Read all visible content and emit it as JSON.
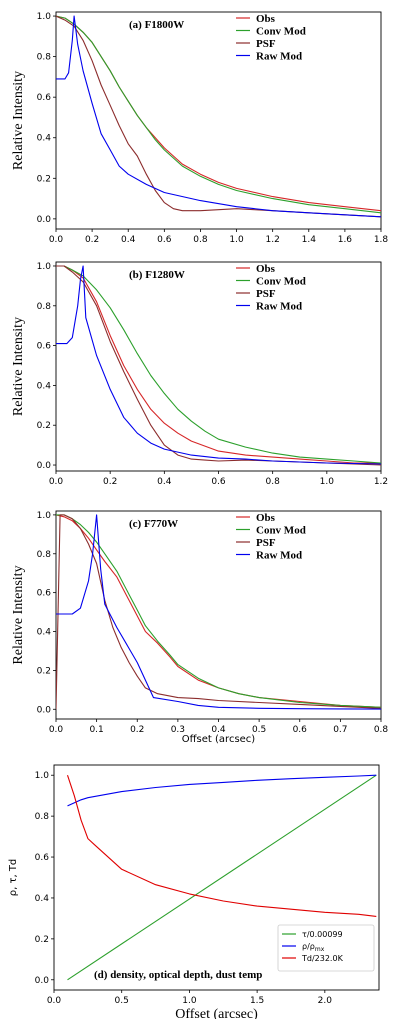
{
  "figure": "page",
  "chart_data": [
    {
      "type": "line",
      "title": "(a) F1800W",
      "xlabel": "",
      "ylabel": "Relative Intensity",
      "xlim": [
        0,
        1.8
      ],
      "ylim": [
        -0.05,
        1.02
      ],
      "xticks": [
        "0.0",
        "0.2",
        "0.4",
        "0.6",
        "0.8",
        "1.0",
        "1.2",
        "1.4",
        "1.6",
        "1.8"
      ],
      "yticks": [
        "0.0",
        "0.2",
        "0.4",
        "0.6",
        "0.8",
        "1.0"
      ],
      "legend": "top-right",
      "series": [
        {
          "name": "Obs",
          "color": "#d62728",
          "x": [
            0,
            0.05,
            0.1,
            0.15,
            0.2,
            0.25,
            0.3,
            0.35,
            0.4,
            0.45,
            0.5,
            0.55,
            0.6,
            0.7,
            0.8,
            0.9,
            1.0,
            1.2,
            1.4,
            1.6,
            1.8
          ],
          "y": [
            1.0,
            0.99,
            0.96,
            0.92,
            0.87,
            0.8,
            0.73,
            0.65,
            0.58,
            0.51,
            0.45,
            0.4,
            0.35,
            0.27,
            0.22,
            0.18,
            0.15,
            0.11,
            0.08,
            0.06,
            0.04
          ]
        },
        {
          "name": "Conv Mod",
          "color": "#2ca02c",
          "x": [
            0,
            0.05,
            0.1,
            0.15,
            0.2,
            0.25,
            0.3,
            0.35,
            0.4,
            0.45,
            0.5,
            0.55,
            0.6,
            0.7,
            0.8,
            0.9,
            1.0,
            1.2,
            1.4,
            1.6,
            1.8
          ],
          "y": [
            1.0,
            0.99,
            0.96,
            0.92,
            0.87,
            0.8,
            0.73,
            0.65,
            0.58,
            0.51,
            0.45,
            0.39,
            0.34,
            0.26,
            0.21,
            0.17,
            0.14,
            0.1,
            0.07,
            0.05,
            0.03
          ]
        },
        {
          "name": "PSF",
          "color": "#8c2d2d",
          "x": [
            0,
            0.05,
            0.1,
            0.15,
            0.2,
            0.25,
            0.3,
            0.35,
            0.4,
            0.45,
            0.5,
            0.55,
            0.6,
            0.65,
            0.7,
            0.8,
            0.9,
            1.0,
            1.1,
            1.2,
            1.4,
            1.6,
            1.8
          ],
          "y": [
            1.0,
            0.98,
            0.95,
            0.88,
            0.78,
            0.66,
            0.56,
            0.46,
            0.37,
            0.31,
            0.22,
            0.14,
            0.08,
            0.05,
            0.04,
            0.04,
            0.045,
            0.05,
            0.045,
            0.04,
            0.03,
            0.02,
            0.01
          ]
        },
        {
          "name": "Raw Mod",
          "color": "#0000ee",
          "x": [
            0,
            0.05,
            0.07,
            0.09,
            0.1,
            0.12,
            0.15,
            0.2,
            0.25,
            0.3,
            0.35,
            0.4,
            0.5,
            0.6,
            0.8,
            1.0,
            1.2,
            1.4,
            1.6,
            1.8
          ],
          "y": [
            0.69,
            0.69,
            0.72,
            0.88,
            1.0,
            0.86,
            0.73,
            0.57,
            0.42,
            0.34,
            0.26,
            0.22,
            0.17,
            0.13,
            0.09,
            0.06,
            0.04,
            0.03,
            0.02,
            0.01
          ]
        }
      ]
    },
    {
      "type": "line",
      "title": "(b) F1280W",
      "xlabel": "",
      "ylabel": "Relative Intensity",
      "xlim": [
        0,
        1.2
      ],
      "ylim": [
        -0.03,
        1.02
      ],
      "xticks": [
        "0.0",
        "0.2",
        "0.4",
        "0.6",
        "0.8",
        "1.0",
        "1.2"
      ],
      "yticks": [
        "0.0",
        "0.2",
        "0.4",
        "0.6",
        "0.8",
        "1.0"
      ],
      "legend": "top-right",
      "series": [
        {
          "name": "Obs",
          "color": "#d62728",
          "x": [
            0,
            0.03,
            0.06,
            0.1,
            0.15,
            0.2,
            0.25,
            0.3,
            0.35,
            0.4,
            0.45,
            0.5,
            0.6,
            0.7,
            0.8,
            0.9,
            1.0,
            1.1,
            1.2
          ],
          "y": [
            1.0,
            1.0,
            0.98,
            0.94,
            0.82,
            0.65,
            0.5,
            0.38,
            0.28,
            0.21,
            0.16,
            0.12,
            0.07,
            0.05,
            0.04,
            0.03,
            0.02,
            0.01,
            0.01
          ]
        },
        {
          "name": "Conv Mod",
          "color": "#2ca02c",
          "x": [
            0,
            0.03,
            0.06,
            0.1,
            0.15,
            0.2,
            0.25,
            0.3,
            0.35,
            0.4,
            0.45,
            0.5,
            0.55,
            0.6,
            0.7,
            0.8,
            0.9,
            1.0,
            1.1,
            1.2
          ],
          "y": [
            1.0,
            1.0,
            0.98,
            0.95,
            0.88,
            0.79,
            0.68,
            0.56,
            0.45,
            0.36,
            0.28,
            0.22,
            0.17,
            0.13,
            0.09,
            0.06,
            0.04,
            0.03,
            0.02,
            0.01
          ]
        },
        {
          "name": "PSF",
          "color": "#8c2d2d",
          "x": [
            0,
            0.03,
            0.06,
            0.1,
            0.15,
            0.2,
            0.25,
            0.3,
            0.35,
            0.4,
            0.45,
            0.5,
            0.55,
            0.6,
            0.7,
            0.8,
            0.9,
            1.0,
            1.2
          ],
          "y": [
            1.0,
            1.0,
            0.97,
            0.92,
            0.8,
            0.62,
            0.47,
            0.33,
            0.2,
            0.1,
            0.05,
            0.03,
            0.025,
            0.02,
            0.025,
            0.02,
            0.015,
            0.01,
            0.0
          ]
        },
        {
          "name": "Raw Mod",
          "color": "#0000ee",
          "x": [
            0,
            0.04,
            0.06,
            0.08,
            0.09,
            0.1,
            0.11,
            0.15,
            0.2,
            0.25,
            0.3,
            0.35,
            0.4,
            0.5,
            0.6,
            0.7,
            0.8,
            0.9,
            1.0,
            1.2
          ],
          "y": [
            0.61,
            0.61,
            0.64,
            0.8,
            0.93,
            1.0,
            0.74,
            0.55,
            0.38,
            0.24,
            0.16,
            0.11,
            0.08,
            0.05,
            0.035,
            0.03,
            0.02,
            0.015,
            0.01,
            0.005
          ]
        }
      ]
    },
    {
      "type": "line",
      "title": "(c) F770W",
      "xlabel": "Offset (arcsec)",
      "ylabel": "Relative Intensity",
      "xlim": [
        0,
        0.8
      ],
      "ylim": [
        -0.05,
        1.02
      ],
      "xticks": [
        "0.0",
        "0.1",
        "0.2",
        "0.3",
        "0.4",
        "0.5",
        "0.6",
        "0.7",
        "0.8"
      ],
      "yticks": [
        "0.0",
        "0.2",
        "0.4",
        "0.6",
        "0.8",
        "1.0"
      ],
      "legend": "top-right",
      "series": [
        {
          "name": "Obs",
          "color": "#d62728",
          "x": [
            0,
            0.02,
            0.04,
            0.06,
            0.08,
            0.1,
            0.12,
            0.15,
            0.18,
            0.2,
            0.22,
            0.25,
            0.28,
            0.3,
            0.35,
            0.4,
            0.45,
            0.5,
            0.6,
            0.7,
            0.8
          ],
          "y": [
            1.0,
            0.99,
            0.97,
            0.93,
            0.88,
            0.82,
            0.76,
            0.68,
            0.56,
            0.48,
            0.4,
            0.34,
            0.27,
            0.22,
            0.15,
            0.11,
            0.08,
            0.06,
            0.04,
            0.02,
            0.01
          ]
        },
        {
          "name": "Conv Mod",
          "color": "#2ca02c",
          "x": [
            0,
            0.02,
            0.04,
            0.06,
            0.08,
            0.1,
            0.12,
            0.15,
            0.18,
            0.2,
            0.22,
            0.25,
            0.28,
            0.3,
            0.35,
            0.4,
            0.45,
            0.5,
            0.6,
            0.7,
            0.8
          ],
          "y": [
            1.0,
            1.0,
            0.98,
            0.95,
            0.91,
            0.86,
            0.8,
            0.71,
            0.59,
            0.51,
            0.43,
            0.35,
            0.28,
            0.23,
            0.16,
            0.11,
            0.08,
            0.06,
            0.035,
            0.02,
            0.01
          ]
        },
        {
          "name": "PSF",
          "color": "#8c2d2d",
          "x": [
            0,
            0.01,
            0.02,
            0.04,
            0.06,
            0.08,
            0.1,
            0.12,
            0.14,
            0.16,
            0.18,
            0.2,
            0.22,
            0.25,
            0.3,
            0.35,
            0.4,
            0.5,
            0.6,
            0.7,
            0.8
          ],
          "y": [
            0.0,
            1.0,
            1.0,
            0.98,
            0.93,
            0.85,
            0.75,
            0.56,
            0.42,
            0.32,
            0.24,
            0.17,
            0.11,
            0.08,
            0.06,
            0.055,
            0.045,
            0.035,
            0.025,
            0.015,
            0.005
          ]
        },
        {
          "name": "Raw Mod",
          "color": "#0000ee",
          "x": [
            0,
            0.04,
            0.06,
            0.08,
            0.09,
            0.1,
            0.11,
            0.12,
            0.15,
            0.2,
            0.24,
            0.3,
            0.35,
            0.4,
            0.5,
            0.6,
            0.7,
            0.8
          ],
          "y": [
            0.49,
            0.49,
            0.52,
            0.66,
            0.8,
            1.0,
            0.72,
            0.54,
            0.42,
            0.24,
            0.06,
            0.04,
            0.02,
            0.01,
            0.005,
            0.003,
            0.002,
            0.001
          ]
        }
      ]
    },
    {
      "type": "line",
      "title": "(d) density, optical depth, dust temp",
      "xlabel": "Offset (arcsec)",
      "ylabel": "ρ, τ, Td",
      "xlim": [
        0,
        2.4
      ],
      "ylim": [
        -0.05,
        1.05
      ],
      "xticks": [
        "0.0",
        "0.5",
        "1.0",
        "1.5",
        "2.0"
      ],
      "yticks": [
        "0.0",
        "0.2",
        "0.4",
        "0.6",
        "0.8",
        "1.0"
      ],
      "legend": "bottom-right",
      "series": [
        {
          "name": "τ/0.00099",
          "color": "#2ca02c",
          "x": [
            0.1,
            2.38
          ],
          "y": [
            0.0,
            1.0
          ]
        },
        {
          "name": "ρ/ρ_mx",
          "color": "#0000ee",
          "x": [
            0.1,
            0.2,
            0.25,
            0.5,
            0.75,
            1.0,
            1.25,
            1.5,
            1.75,
            2.0,
            2.25,
            2.38
          ],
          "y": [
            0.85,
            0.88,
            0.89,
            0.92,
            0.94,
            0.955,
            0.965,
            0.975,
            0.983,
            0.99,
            0.996,
            1.0
          ]
        },
        {
          "name": "Td/232.0K",
          "color": "#e00000",
          "x": [
            0.1,
            0.15,
            0.2,
            0.25,
            0.3,
            0.5,
            0.75,
            1.0,
            1.25,
            1.5,
            1.75,
            2.0,
            2.25,
            2.38
          ],
          "y": [
            1.0,
            0.9,
            0.78,
            0.69,
            0.66,
            0.54,
            0.465,
            0.42,
            0.385,
            0.36,
            0.345,
            0.33,
            0.32,
            0.31
          ]
        }
      ]
    }
  ]
}
